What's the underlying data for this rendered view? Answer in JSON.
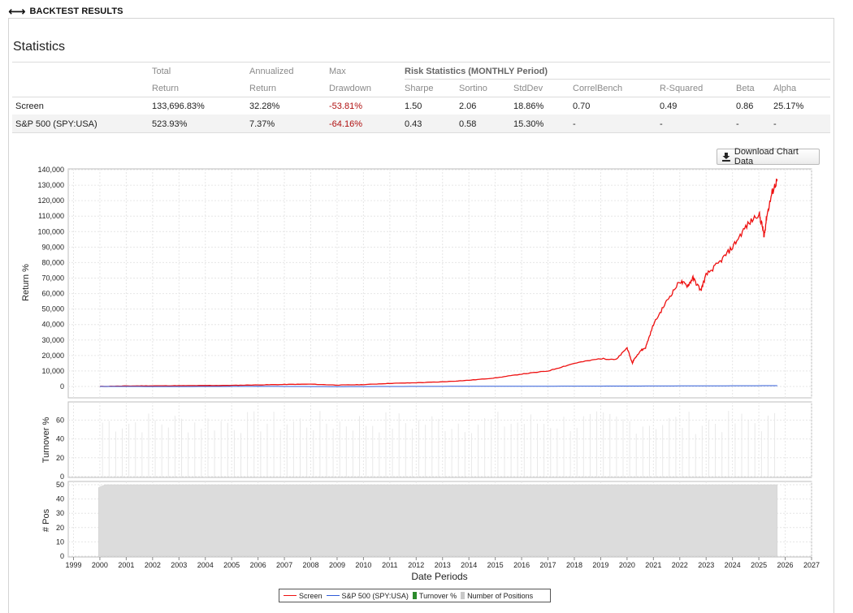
{
  "header": {
    "title": "BACKTEST RESULTS",
    "icon": "left-right-arrow-icon"
  },
  "stats": {
    "title": "Statistics",
    "risk_header": "Risk Statistics (MONTHLY Period)",
    "col_top": {
      "total": "Total",
      "annualized": "Annualized",
      "max": "Max"
    },
    "col_bottom": {
      "total": "Return",
      "annualized": "Return",
      "max": "Drawdown",
      "sharpe": "Sharpe",
      "sortino": "Sortino",
      "stddev": "StdDev",
      "correl": "CorrelBench",
      "rsq": "R-Squared",
      "beta": "Beta",
      "alpha": "Alpha"
    },
    "rows": [
      {
        "name": "Screen",
        "total": "133,696.83%",
        "annualized": "32.28%",
        "max": "-53.81%",
        "sharpe": "1.50",
        "sortino": "2.06",
        "stddev": "18.86%",
        "correl": "0.70",
        "rsq": "0.49",
        "beta": "0.86",
        "alpha": "25.17%"
      },
      {
        "name": "S&P 500 (SPY:USA)",
        "total": "523.93%",
        "annualized": "7.37%",
        "max": "-64.16%",
        "sharpe": "0.43",
        "sortino": "0.58",
        "stddev": "15.30%",
        "correl": "-",
        "rsq": "-",
        "beta": "-",
        "alpha": "-"
      }
    ],
    "negative_color": "#b01010"
  },
  "download_button": {
    "label": "Download Chart Data",
    "icon": "download-icon"
  },
  "chart_data": [
    {
      "type": "line",
      "title": "",
      "xlabel": "Date Periods",
      "ylabel": "Return %",
      "ylim": [
        0,
        140000
      ],
      "yticks": [
        "140,000",
        "130,000",
        "120,000",
        "110,000",
        "100,000",
        "90,000",
        "80,000",
        "70,000",
        "60,000",
        "50,000",
        "40,000",
        "30,000",
        "20,000",
        "10,000",
        "0"
      ],
      "xticks": [
        "1999",
        "2000",
        "2001",
        "2002",
        "2003",
        "2004",
        "2005",
        "2006",
        "2007",
        "2008",
        "2009",
        "2010",
        "2011",
        "2012",
        "2013",
        "2014",
        "2015",
        "2016",
        "2017",
        "2018",
        "2019",
        "2020",
        "2021",
        "2022",
        "2023",
        "2024",
        "2025",
        "2026",
        "2027"
      ],
      "xlim": [
        1998.8,
        2027
      ],
      "series": [
        {
          "name": "Screen",
          "color": "#ee1111",
          "x": [
            2000.0,
            2001.0,
            2002.0,
            2003.0,
            2004.0,
            2005.0,
            2006.0,
            2007.0,
            2008.0,
            2009.0,
            2010.0,
            2011.0,
            2012.0,
            2013.0,
            2014.0,
            2015.0,
            2016.0,
            2017.0,
            2018.0,
            2019.0,
            2019.6,
            2020.0,
            2020.2,
            2020.25,
            2020.5,
            2020.7,
            2021.0,
            2021.5,
            2022.0,
            2022.3,
            2022.5,
            2022.8,
            2023.0,
            2023.5,
            2024.0,
            2024.5,
            2025.0,
            2025.15,
            2025.2,
            2025.3,
            2025.5,
            2025.7
          ],
          "y": [
            0,
            300,
            400,
            500,
            600,
            700,
            1000,
            1300,
            1500,
            900,
            1200,
            2000,
            2400,
            3000,
            4000,
            5500,
            8000,
            10000,
            15000,
            18000,
            17500,
            25000,
            15000,
            17000,
            23000,
            25000,
            40000,
            55000,
            68000,
            65000,
            70000,
            62000,
            72000,
            80000,
            90000,
            103000,
            112000,
            102000,
            97000,
            110000,
            125000,
            133700
          ]
        },
        {
          "name": "S&P 500 (SPY:USA)",
          "color": "#2f5bd8",
          "x": [
            2000.0,
            2003.0,
            2006.0,
            2009.0,
            2012.0,
            2015.0,
            2018.0,
            2021.0,
            2024.0,
            2025.7
          ],
          "y": [
            0,
            -50,
            80,
            -100,
            50,
            120,
            200,
            300,
            450,
            524
          ]
        }
      ]
    },
    {
      "type": "bar",
      "title": "",
      "ylabel": "Turnover %",
      "ylim": [
        0,
        75
      ],
      "yticks": [
        "60",
        "40",
        "20",
        "0"
      ],
      "series": [
        {
          "name": "Turnover %",
          "color": "#2c8a2c"
        }
      ]
    },
    {
      "type": "area",
      "title": "",
      "ylabel": "# Pos",
      "ylim": [
        0,
        50
      ],
      "yticks": [
        "50",
        "40",
        "30",
        "20",
        "10",
        "0"
      ],
      "series": [
        {
          "name": "Number of Positions",
          "color": "#dcdcdc",
          "x": [
            1999.95,
            2000.2,
            2025.7
          ],
          "y": [
            48,
            50,
            50
          ]
        }
      ]
    }
  ],
  "legend": [
    {
      "label": "Screen",
      "color": "#ee1111",
      "kind": "line"
    },
    {
      "label": "S&P 500 (SPY:USA)",
      "color": "#2f5bd8",
      "kind": "line"
    },
    {
      "label": "Turnover %",
      "color": "#2c8a2c",
      "kind": "box"
    },
    {
      "label": "Number of Positions",
      "color": "#c8c8c8",
      "kind": "box"
    }
  ]
}
